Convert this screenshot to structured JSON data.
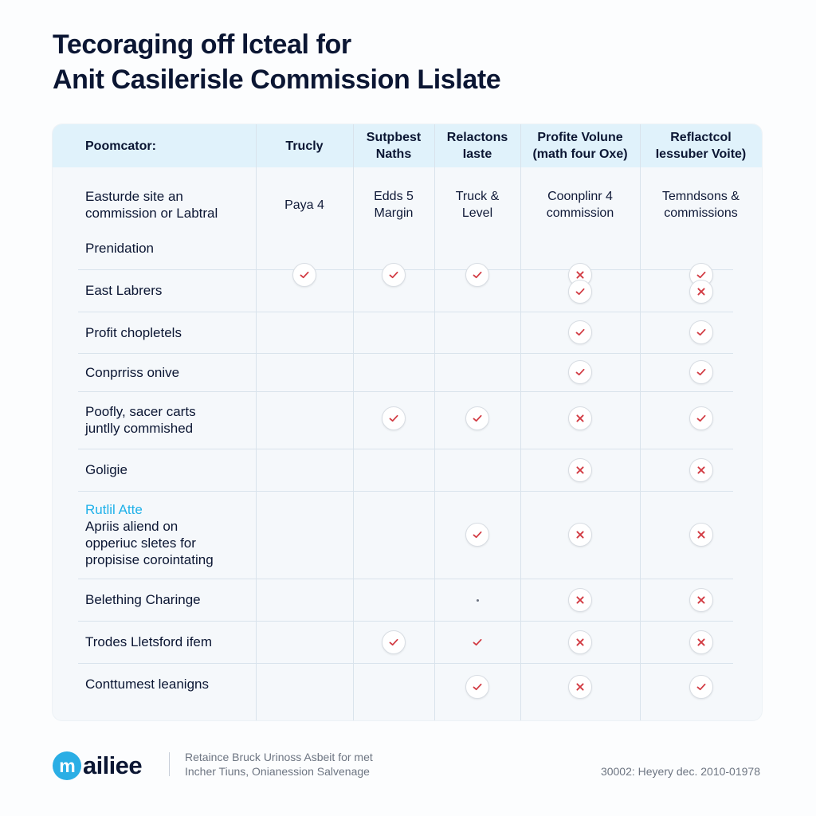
{
  "title": {
    "line1": "Tecoraging off lcteal for",
    "line2": "Anit Casilerisle Commission Lislate"
  },
  "table": {
    "columns": [
      {
        "label": "Poomcator:"
      },
      {
        "label": "Trucly"
      },
      {
        "label": "Sutpbest\nNaths"
      },
      {
        "label": "Relactons\nIaste"
      },
      {
        "label": "Profite Volune\n(math four Oxe)"
      },
      {
        "label": "Reflactcol\nIessuber Voite)"
      }
    ],
    "subheader": {
      "label": "Easturde site an\ncommission or Labtral",
      "values": [
        "Paya 4",
        "Edds 5\nMargin",
        "Truck &\nLevel",
        "Coonplinr 4\ncommission",
        "Temndsons &\ncommissions"
      ]
    },
    "rows": [
      {
        "label": "Prenidation",
        "marks": [
          "check",
          "check",
          "check",
          "cross",
          "check"
        ]
      },
      {
        "label": "East Labrers",
        "marks": [
          "",
          "",
          "",
          "check",
          "cross"
        ]
      },
      {
        "label": "Profit chopletels",
        "marks": [
          "",
          "",
          "",
          "check",
          "check"
        ]
      },
      {
        "label": "Conprriss onive",
        "marks": [
          "",
          "",
          "",
          "check",
          "check"
        ]
      },
      {
        "label": "Poofly, sacer carts\njuntlly commished",
        "marks": [
          "",
          "check",
          "check",
          "cross",
          "check"
        ]
      },
      {
        "label": "Goligie",
        "marks": [
          "",
          "",
          "",
          "cross",
          "cross"
        ]
      },
      {
        "accent_label": "Rutlil Atte",
        "label": "Apriis aliend on\nopperiuc sletes for\npropisise corointating",
        "marks": [
          "",
          "",
          "check",
          "cross",
          "cross"
        ]
      },
      {
        "label": "Belething Charinge",
        "marks": [
          "",
          "",
          "dot",
          "cross",
          "cross"
        ]
      },
      {
        "label": "Trodes Lletsford ifem",
        "marks": [
          "",
          "check",
          "plain-check",
          "cross",
          "cross"
        ]
      },
      {
        "label": "Conttumest leanigns",
        "marks": [
          "",
          "",
          "check",
          "cross",
          "check"
        ]
      }
    ]
  },
  "footer": {
    "logo_badge": "m",
    "logo_text": "ailiee",
    "description_line1": "Retaince Bruck Urinoss Asbeit for met",
    "description_line2": "Incher Tiuns, Onianession Salvenage",
    "code": "30002: Heyery dec. 2010-01978"
  },
  "colors": {
    "check": "#d23b43",
    "cross": "#d23b43",
    "header_band": "#e0f2fb",
    "accent": "#1fb1e9"
  },
  "icons": {
    "check": "check-icon",
    "cross": "cross-icon",
    "logo": "logo-badge-icon"
  }
}
